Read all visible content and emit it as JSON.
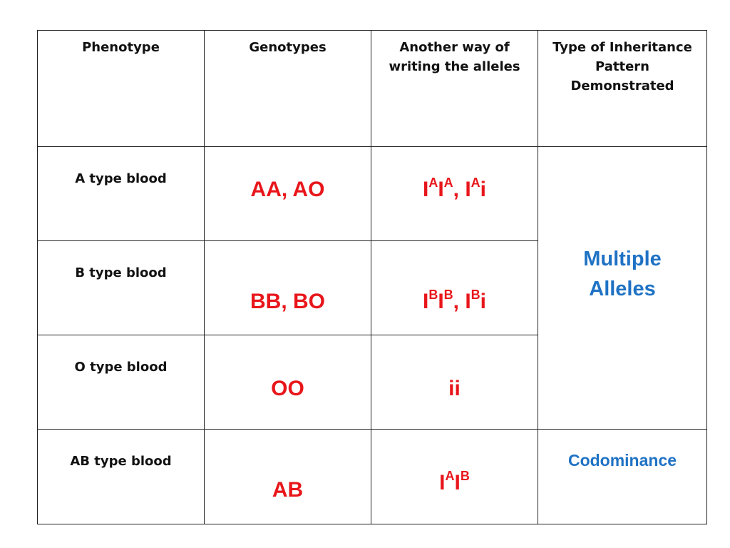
{
  "headers": {
    "phenotype": "Phenotype",
    "genotypes": "Genotypes",
    "another_way_line1": "Another way of",
    "another_way_line2": "writing the alleles",
    "inheritance_line1": "Type of Inheritance",
    "inheritance_line2": "Pattern",
    "inheritance_line3": "Demonstrated"
  },
  "rows": [
    {
      "phenotype": "A type blood",
      "genotypes": "AA, AO",
      "alleles": [
        {
          "base": "I",
          "sup": "A"
        },
        {
          "base": "I",
          "sup": "A"
        },
        {
          "sep": ", "
        },
        {
          "base": "I",
          "sup": "A"
        },
        {
          "tail": "i"
        }
      ]
    },
    {
      "phenotype": "B type blood",
      "genotypes": "BB, BO",
      "alleles": [
        {
          "base": "I",
          "sup": "B"
        },
        {
          "base": "I",
          "sup": "B"
        },
        {
          "sep": ", "
        },
        {
          "base": "I",
          "sup": "B"
        },
        {
          "tail": "i"
        }
      ]
    },
    {
      "phenotype": "O type blood",
      "genotypes": "OO",
      "alleles_plain": "ii"
    },
    {
      "phenotype": "AB type blood",
      "genotypes": "AB",
      "alleles": [
        {
          "base": "I",
          "sup": "A"
        },
        {
          "base": "I",
          "sup": "B"
        }
      ]
    }
  ],
  "inheritance": {
    "multiple_line1": "Multiple",
    "multiple_line2": "Alleles",
    "codominance": "Codominance"
  },
  "colors": {
    "genotype_red": "#e8161b",
    "inheritance_blue": "#1f72c4",
    "border": "#222222"
  }
}
